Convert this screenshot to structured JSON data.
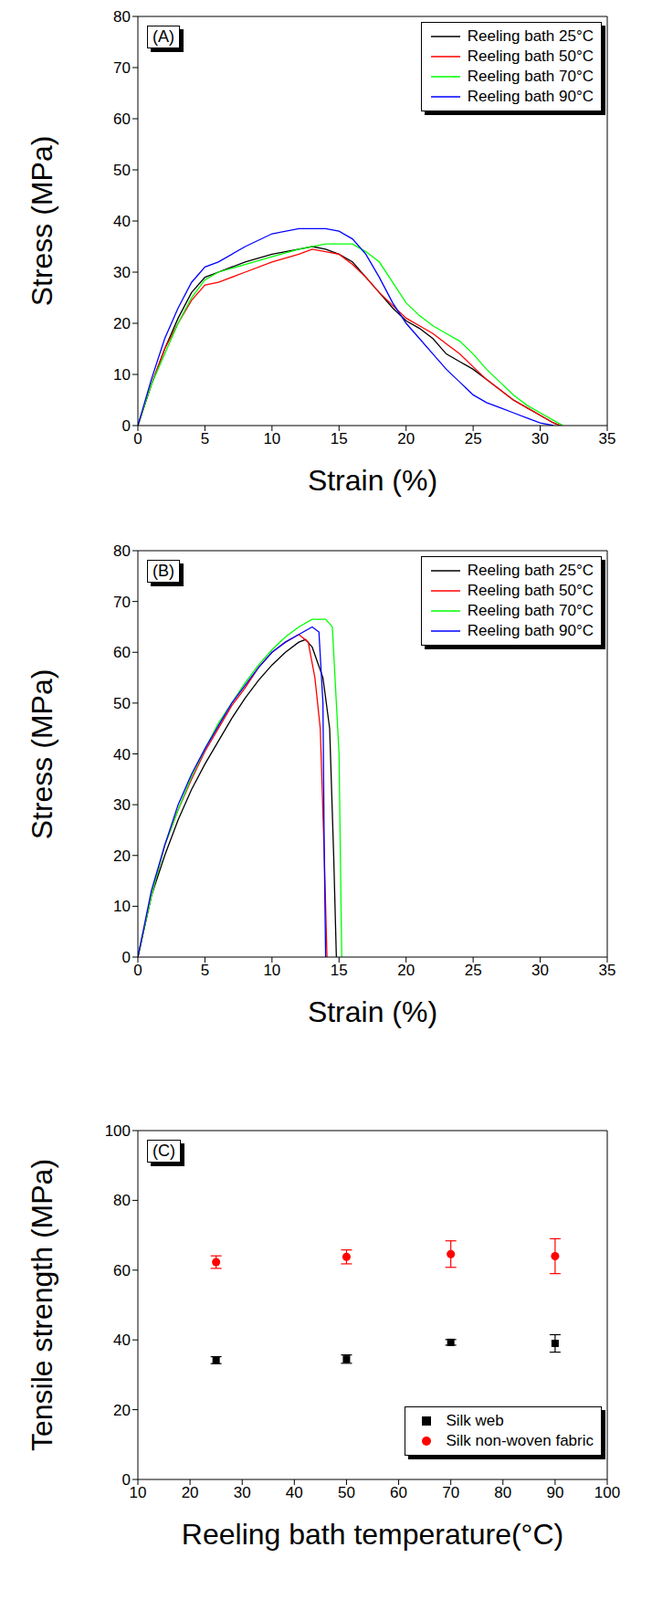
{
  "chart_data": [
    {
      "type": "line",
      "title": "(A)",
      "xlabel": "Strain (%)",
      "ylabel": "Stress (MPa)",
      "xlim": [
        0,
        35
      ],
      "xticks": [
        0,
        5,
        10,
        15,
        20,
        25,
        30,
        35
      ],
      "ylim": [
        0,
        80
      ],
      "yticks": [
        0,
        10,
        20,
        30,
        40,
        50,
        60,
        70,
        80
      ],
      "legend": "upper right",
      "series": [
        {
          "name": "Reeling bath 25°C",
          "color": "#000000",
          "x": [
            0,
            1,
            2,
            3,
            4,
            5,
            6,
            8,
            10,
            12,
            13,
            14,
            15,
            16,
            17,
            18,
            19,
            20,
            21,
            22,
            23,
            24,
            25,
            26,
            27,
            28,
            29,
            30,
            31,
            31.5
          ],
          "values": [
            0,
            8,
            15,
            21,
            26,
            29,
            30,
            32,
            33.5,
            34.5,
            35,
            34.5,
            33.5,
            32,
            29,
            26,
            23,
            20.5,
            19,
            17,
            14,
            12.5,
            11,
            9,
            7,
            5,
            3.5,
            2,
            0.5,
            0
          ]
        },
        {
          "name": "Reeling bath 50°C",
          "color": "#ff0000",
          "x": [
            0,
            1,
            2,
            3,
            4,
            5,
            6,
            8,
            10,
            12,
            13,
            14,
            15,
            16,
            17,
            18,
            19,
            20,
            21,
            22,
            23,
            24,
            25,
            26,
            27,
            28,
            29,
            30,
            31,
            31.5
          ],
          "values": [
            0,
            8,
            15,
            20,
            24.5,
            27.5,
            28,
            30,
            32,
            33.5,
            34.5,
            34,
            33.5,
            31.5,
            29,
            26,
            23.5,
            21,
            19.5,
            18,
            16,
            14,
            11.5,
            9,
            7,
            5,
            3.5,
            2,
            0.5,
            0
          ]
        },
        {
          "name": "Reeling bath 70°C",
          "color": "#00ff00",
          "x": [
            0,
            1,
            2,
            3,
            4,
            5,
            6,
            8,
            10,
            12,
            14,
            16,
            17,
            18,
            19,
            20,
            21,
            22,
            23,
            24,
            25,
            26,
            27,
            28,
            29,
            30,
            31,
            31.7
          ],
          "values": [
            0,
            8,
            14,
            20,
            25,
            28.5,
            30,
            31.5,
            33,
            34.5,
            35.5,
            35.5,
            34,
            32,
            28,
            24,
            21.5,
            19.5,
            18,
            16.5,
            14,
            11,
            8.5,
            6,
            4,
            2.5,
            1,
            0
          ]
        },
        {
          "name": "Reeling bath 90°C",
          "color": "#0000ff",
          "x": [
            0,
            1,
            2,
            3,
            4,
            5,
            6,
            8,
            10,
            12,
            14,
            15,
            16,
            17,
            18,
            19,
            20,
            21,
            22,
            23,
            24,
            25,
            26,
            27,
            28,
            29,
            30,
            31
          ],
          "values": [
            0,
            9,
            17,
            23,
            28,
            31,
            32,
            35,
            37.5,
            38.5,
            38.5,
            38,
            36.5,
            33.5,
            29,
            24,
            20,
            17,
            14,
            11,
            8.5,
            6,
            4.5,
            3.5,
            2.5,
            1.5,
            0.5,
            0
          ]
        }
      ]
    },
    {
      "type": "line",
      "title": "(B)",
      "xlabel": "Strain (%)",
      "ylabel": "Stress (MPa)",
      "xlim": [
        0,
        35
      ],
      "xticks": [
        0,
        5,
        10,
        15,
        20,
        25,
        30,
        35
      ],
      "ylim": [
        0,
        80
      ],
      "yticks": [
        0,
        10,
        20,
        30,
        40,
        50,
        60,
        70,
        80
      ],
      "legend": "upper right",
      "series": [
        {
          "name": "Reeling bath 25°C",
          "color": "#000000",
          "x": [
            0,
            1,
            2,
            3,
            4,
            5,
            6,
            7,
            8,
            9,
            10,
            11,
            12,
            12.5,
            13,
            13.8,
            14.3,
            14.6,
            14.8
          ],
          "values": [
            0,
            12,
            20,
            27,
            33,
            38,
            42.5,
            47,
            51,
            54.5,
            57.5,
            60,
            62,
            62.5,
            61,
            55,
            45,
            20,
            0
          ]
        },
        {
          "name": "Reeling bath 50°C",
          "color": "#ff0000",
          "x": [
            0,
            1,
            2,
            3,
            4,
            5,
            6,
            7,
            8,
            9,
            10,
            11,
            12,
            12.7,
            13.2,
            13.6,
            13.9,
            14.1
          ],
          "values": [
            0,
            12,
            22,
            29,
            35,
            40.5,
            45,
            49.5,
            53,
            57,
            60,
            62,
            63.5,
            62,
            55,
            45,
            20,
            0
          ]
        },
        {
          "name": "Reeling bath 70°C",
          "color": "#00ff00",
          "x": [
            0,
            1,
            2,
            3,
            4,
            5,
            6,
            7,
            8,
            9,
            10,
            11,
            12,
            13,
            14,
            14.5,
            15,
            15.2
          ],
          "values": [
            0,
            12,
            22,
            29,
            35.5,
            41,
            46,
            50,
            54,
            57.5,
            60.5,
            63,
            65,
            66.5,
            66.5,
            65,
            40,
            0
          ]
        },
        {
          "name": "Reeling bath 90°C",
          "color": "#0000ff",
          "x": [
            0,
            1,
            2,
            3,
            4,
            5,
            6,
            7,
            8,
            9,
            10,
            11,
            12,
            13,
            13.5,
            13.8,
            13.9,
            14
          ],
          "values": [
            0,
            13,
            22,
            30,
            36,
            41,
            45.5,
            50,
            53.5,
            57,
            60,
            62,
            63.5,
            65,
            64,
            50,
            20,
            0
          ]
        }
      ]
    },
    {
      "type": "scatter",
      "title": "(C)",
      "xlabel": "Reeling bath temperature(°C)",
      "ylabel": "Tensile strength (MPa)",
      "xlim": [
        10,
        100
      ],
      "xticks": [
        10,
        20,
        30,
        40,
        50,
        60,
        70,
        80,
        90,
        100
      ],
      "ylim": [
        0,
        100
      ],
      "yticks": [
        0,
        20,
        40,
        60,
        80,
        100
      ],
      "legend": "lower right",
      "series": [
        {
          "name": "Silk web",
          "color": "#000000",
          "marker": "square",
          "x": [
            25,
            50,
            70,
            90
          ],
          "values": [
            34.2,
            34.5,
            39.3,
            39
          ],
          "errors": [
            1,
            1.2,
            0.8,
            2.5
          ]
        },
        {
          "name": "Silk non-woven fabric",
          "color": "#ff0000",
          "marker": "circle",
          "x": [
            25,
            50,
            70,
            90
          ],
          "values": [
            62.3,
            63.8,
            64.6,
            64
          ],
          "errors": [
            1.8,
            2,
            3.8,
            5
          ]
        }
      ]
    }
  ]
}
